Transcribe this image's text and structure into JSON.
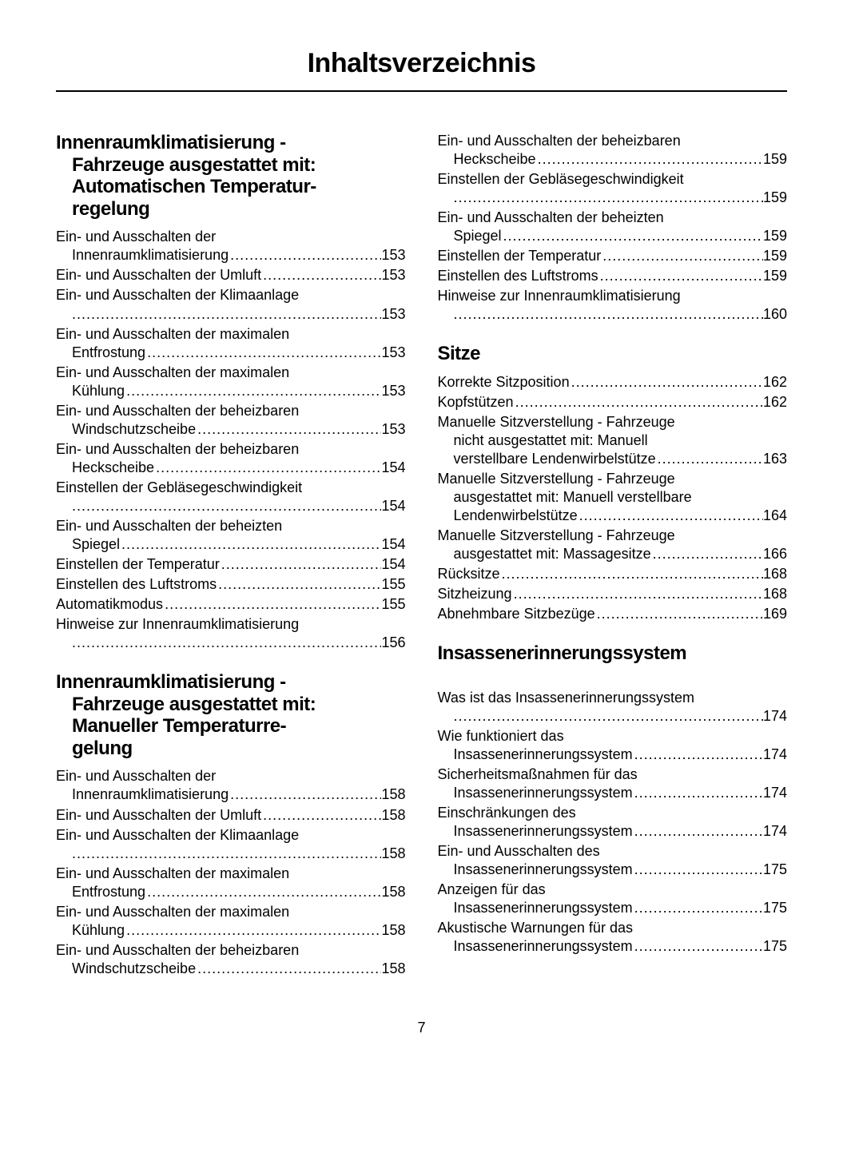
{
  "page_title": "Inhaltsverzeichnis",
  "page_number": "7",
  "left_column": {
    "sections": [
      {
        "heading_lines": [
          "Innenraumklimatisierung -",
          "Fahrzeuge ausgestattet mit:",
          "Automatischen Temperatur-",
          "regelung"
        ],
        "entries": [
          {
            "lines": [
              "Ein- und Ausschalten der"
            ],
            "lastline_prefix": "Innenraumklimatisierung",
            "indent_last": true,
            "page": "153"
          },
          {
            "lines": [],
            "lastline_prefix": "Ein- und Ausschalten der Umluft",
            "page": "153"
          },
          {
            "lines": [
              "Ein- und Ausschalten der Klimaanlage"
            ],
            "lastline_prefix": "",
            "indent_last": true,
            "page": "153"
          },
          {
            "lines": [
              "Ein- und Ausschalten der maximalen"
            ],
            "lastline_prefix": "Entfrostung",
            "indent_last": true,
            "page": "153"
          },
          {
            "lines": [
              "Ein- und Ausschalten der maximalen"
            ],
            "lastline_prefix": "Kühlung",
            "indent_last": true,
            "page": "153"
          },
          {
            "lines": [
              "Ein- und Ausschalten der beheizbaren"
            ],
            "lastline_prefix": "Windschutzscheibe",
            "indent_last": true,
            "page": "153"
          },
          {
            "lines": [
              "Ein- und Ausschalten der beheizbaren"
            ],
            "lastline_prefix": "Heckscheibe",
            "indent_last": true,
            "page": "154"
          },
          {
            "lines": [
              "Einstellen der Gebläsegeschwindigkeit"
            ],
            "lastline_prefix": "",
            "indent_last": true,
            "page": "154"
          },
          {
            "lines": [
              "Ein- und Ausschalten der beheizten"
            ],
            "lastline_prefix": "Spiegel",
            "indent_last": true,
            "page": "154"
          },
          {
            "lines": [],
            "lastline_prefix": "Einstellen der Temperatur",
            "page": "154"
          },
          {
            "lines": [],
            "lastline_prefix": "Einstellen des Luftstroms",
            "page": "155"
          },
          {
            "lines": [],
            "lastline_prefix": "Automatikmodus",
            "page": "155"
          },
          {
            "lines": [
              "Hinweise zur Innenraumklimatisierung"
            ],
            "lastline_prefix": "",
            "indent_last": true,
            "page": "156"
          }
        ]
      },
      {
        "heading_lines": [
          "Innenraumklimatisierung -",
          "Fahrzeuge ausgestattet mit:",
          "Manueller Temperaturre-",
          "gelung"
        ],
        "entries": [
          {
            "lines": [
              "Ein- und Ausschalten der"
            ],
            "lastline_prefix": "Innenraumklimatisierung",
            "indent_last": true,
            "page": "158"
          },
          {
            "lines": [],
            "lastline_prefix": "Ein- und Ausschalten der Umluft",
            "page": "158"
          },
          {
            "lines": [
              "Ein- und Ausschalten der Klimaanlage"
            ],
            "lastline_prefix": "",
            "indent_last": true,
            "page": "158"
          },
          {
            "lines": [
              "Ein- und Ausschalten der maximalen"
            ],
            "lastline_prefix": "Entfrostung",
            "indent_last": true,
            "page": "158"
          },
          {
            "lines": [
              "Ein- und Ausschalten der maximalen"
            ],
            "lastline_prefix": "Kühlung",
            "indent_last": true,
            "page": "158"
          },
          {
            "lines": [
              "Ein- und Ausschalten der beheizbaren"
            ],
            "lastline_prefix": "Windschutzscheibe",
            "indent_last": true,
            "page": "158"
          }
        ]
      }
    ]
  },
  "right_column": {
    "sections": [
      {
        "heading_lines": [],
        "entries": [
          {
            "lines": [
              "Ein- und Ausschalten der beheizbaren"
            ],
            "lastline_prefix": "Heckscheibe",
            "indent_last": true,
            "page": "159"
          },
          {
            "lines": [
              "Einstellen der Gebläsegeschwindigkeit"
            ],
            "lastline_prefix": "",
            "indent_last": true,
            "page": "159"
          },
          {
            "lines": [
              "Ein- und Ausschalten der beheizten"
            ],
            "lastline_prefix": "Spiegel",
            "indent_last": true,
            "page": "159"
          },
          {
            "lines": [],
            "lastline_prefix": "Einstellen der Temperatur",
            "page": "159"
          },
          {
            "lines": [],
            "lastline_prefix": "Einstellen des Luftstroms",
            "page": "159"
          },
          {
            "lines": [
              "Hinweise zur Innenraumklimatisierung"
            ],
            "lastline_prefix": "",
            "indent_last": true,
            "page": "160"
          }
        ]
      },
      {
        "heading_lines": [
          "Sitze"
        ],
        "entries": [
          {
            "lines": [],
            "lastline_prefix": "Korrekte Sitzposition",
            "page": "162"
          },
          {
            "lines": [],
            "lastline_prefix": "Kopfstützen",
            "page": "162"
          },
          {
            "lines": [
              "Manuelle Sitzverstellung - Fahrzeuge",
              "nicht ausgestattet mit: Manuell"
            ],
            "indent_rest": true,
            "lastline_prefix": "verstellbare Lendenwirbelstütze",
            "indent_last": true,
            "page": "163"
          },
          {
            "lines": [
              "Manuelle Sitzverstellung - Fahrzeuge",
              "ausgestattet mit: Manuell verstellbare"
            ],
            "indent_rest": true,
            "lastline_prefix": "Lendenwirbelstütze",
            "indent_last": true,
            "page": "164"
          },
          {
            "lines": [
              "Manuelle Sitzverstellung - Fahrzeuge"
            ],
            "lastline_prefix": "ausgestattet mit: Massagesitze",
            "indent_last": true,
            "page": "166"
          },
          {
            "lines": [],
            "lastline_prefix": "Rücksitze",
            "page": "168"
          },
          {
            "lines": [],
            "lastline_prefix": "Sitzheizung",
            "page": "168"
          },
          {
            "lines": [],
            "lastline_prefix": "Abnehmbare Sitzbezüge",
            "page": "169"
          }
        ]
      },
      {
        "heading_lines": [
          "Insassenerinnerungssystem"
        ],
        "spacer_before_entries": true,
        "entries": [
          {
            "lines": [
              "Was ist das Insassenerinnerungssystem"
            ],
            "lastline_prefix": "",
            "indent_last": true,
            "page": "174"
          },
          {
            "lines": [
              "Wie funktioniert das"
            ],
            "lastline_prefix": "Insassenerinnerungssystem",
            "indent_last": true,
            "page": "174"
          },
          {
            "lines": [
              "Sicherheitsmaßnahmen für das"
            ],
            "lastline_prefix": "Insassenerinnerungssystem",
            "indent_last": true,
            "page": "174"
          },
          {
            "lines": [
              "Einschränkungen des"
            ],
            "lastline_prefix": "Insassenerinnerungssystem",
            "indent_last": true,
            "page": "174"
          },
          {
            "lines": [
              "Ein- und Ausschalten des"
            ],
            "lastline_prefix": "Insassenerinnerungssystem",
            "indent_last": true,
            "page": "175"
          },
          {
            "lines": [
              "Anzeigen für das"
            ],
            "lastline_prefix": "Insassenerinnerungssystem",
            "indent_last": true,
            "page": "175"
          },
          {
            "lines": [
              "Akustische Warnungen für das"
            ],
            "lastline_prefix": "Insassenerinnerungssystem",
            "indent_last": true,
            "page": "175"
          }
        ]
      }
    ]
  }
}
